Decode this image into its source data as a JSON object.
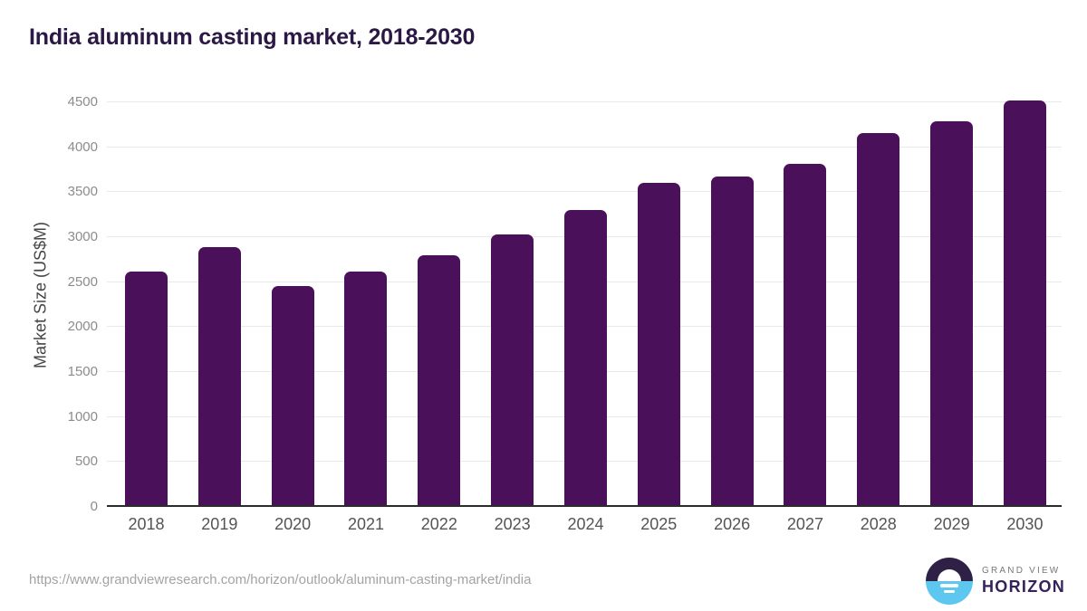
{
  "page": {
    "title": "India aluminum casting market, 2018-2030",
    "source_url": "https://www.grandviewresearch.com/horizon/outlook/aluminum-casting-market/india"
  },
  "branding": {
    "logo_top": "GRAND VIEW",
    "logo_bottom": "HORIZON"
  },
  "chart_data": {
    "type": "bar",
    "title": "India aluminum casting market, 2018-2030",
    "categories": [
      "2018",
      "2019",
      "2020",
      "2021",
      "2022",
      "2023",
      "2024",
      "2025",
      "2026",
      "2027",
      "2028",
      "2029",
      "2030"
    ],
    "values": [
      2620,
      2890,
      2460,
      2620,
      2800,
      3030,
      3300,
      3600,
      3670,
      3820,
      4160,
      4290,
      4520
    ],
    "xlabel": "",
    "ylabel": "Market Size (US$M)",
    "ylim": [
      0,
      4500
    ],
    "yticks": [
      0,
      500,
      1000,
      1500,
      2000,
      2500,
      3000,
      3500,
      4000,
      4500
    ],
    "grid": true,
    "legend": false,
    "bar_color": "#4a1059"
  },
  "colors": {
    "title": "#2c1844",
    "bar": "#4a1059",
    "gridline": "#e9e9ec",
    "axis_line": "#2b2b2b",
    "y_tick_label": "#8c8c8e",
    "x_tick_label": "#545457",
    "axis_title": "#454547",
    "url_text": "#a3a3a3",
    "logo_dark": "#2e2145",
    "logo_blue": "#5ec7f0",
    "logo_gray_text": "#77787b",
    "logo_purple_text": "#33235a"
  }
}
